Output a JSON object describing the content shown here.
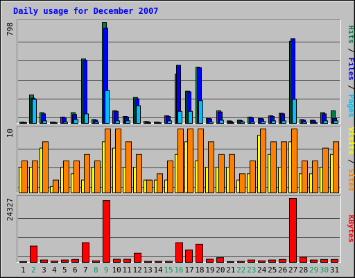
{
  "chart_data": {
    "type": "bar",
    "title": "Daily usage for December 2007",
    "categories": [
      "1",
      "2",
      "3",
      "4",
      "5",
      "6",
      "7",
      "8",
      "9",
      "10",
      "11",
      "12",
      "13",
      "14",
      "15",
      "16",
      "17",
      "18",
      "19",
      "20",
      "21",
      "22",
      "23",
      "24",
      "25",
      "26",
      "27",
      "28",
      "29",
      "30",
      "31"
    ],
    "weekend_days": [
      "2",
      "8",
      "9",
      "15",
      "16",
      "22",
      "23",
      "29",
      "30"
    ],
    "panels": [
      {
        "name": "requests",
        "axis_max_label": "798",
        "ylim": [
          0,
          798
        ],
        "series": [
          {
            "name": "Hits",
            "color": "#008040",
            "values": [
              10,
              225,
              85,
              10,
              50,
              85,
              510,
              30,
              798,
              100,
              55,
              205,
              15,
              10,
              60,
              390,
              255,
              445,
              40,
              100,
              20,
              25,
              50,
              40,
              60,
              80,
              650,
              30,
              25,
              85,
              100
            ]
          },
          {
            "name": "Files",
            "color": "#0000FF",
            "values": [
              8,
              200,
              75,
              8,
              45,
              70,
              500,
              25,
              755,
              95,
              50,
              195,
              12,
              8,
              55,
              460,
              250,
              440,
              35,
              90,
              15,
              20,
              45,
              35,
              55,
              75,
              670,
              25,
              20,
              75,
              40
            ]
          },
          {
            "name": "Pages",
            "color": "#00C0FF",
            "values": [
              3,
              190,
              20,
              5,
              10,
              30,
              75,
              10,
              260,
              20,
              20,
              140,
              5,
              5,
              20,
              95,
              95,
              180,
              10,
              25,
              5,
              10,
              10,
              15,
              20,
              20,
              190,
              10,
              5,
              20,
              20
            ]
          }
        ],
        "legend": [
          "Pages",
          "Files",
          "Hits"
        ]
      },
      {
        "name": "visits",
        "axis_max_label": "10",
        "ylim": [
          0,
          10
        ],
        "series": [
          {
            "name": "Visits",
            "color": "#FFFF00",
            "values": [
              4,
              4,
              7,
              1,
              4,
              3,
              2,
              4,
              8,
              7,
              4,
              4,
              2,
              2,
              2,
              6,
              8,
              5,
              4,
              4,
              4,
              2,
              3,
              9,
              6,
              4,
              8,
              3,
              3,
              4,
              6
            ]
          },
          {
            "name": "Sites",
            "color": "#FF8000",
            "values": [
              5,
              5,
              8,
              2,
              5,
              5,
              6,
              5,
              10,
              10,
              8,
              6,
              2,
              3,
              5,
              10,
              10,
              10,
              8,
              6,
              6,
              3,
              5,
              10,
              8,
              8,
              10,
              5,
              5,
              7,
              8
            ]
          }
        ],
        "legend": [
          "Sites",
          "Visits"
        ]
      },
      {
        "name": "kbytes",
        "axis_max_label": "24327",
        "ylim": [
          0,
          24327
        ],
        "series": [
          {
            "name": "KBytes",
            "color": "#FF0000",
            "values": [
              300,
              6200,
              900,
              500,
              900,
              1100,
              7500,
              600,
              23500,
              1200,
              1200,
              3500,
              400,
              400,
              400,
              7500,
              4700,
              6900,
              1200,
              1800,
              300,
              400,
              900,
              600,
              900,
              1100,
              24327,
              2000,
              900,
              1100,
              1100
            ]
          }
        ],
        "legend": [
          "KBytes"
        ]
      }
    ],
    "colors": {
      "background": "#C0C0C0",
      "plot_background": "#C0C0C0",
      "grid": "#404040",
      "title": "#0000FF",
      "weekday_label": "#000000",
      "weekend_label": "#00A060"
    }
  }
}
